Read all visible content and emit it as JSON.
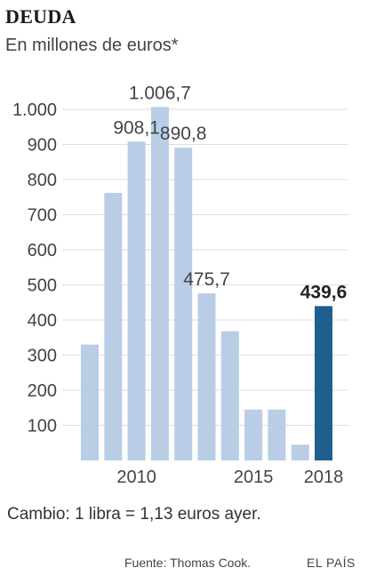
{
  "header": {
    "title": "DEUDA",
    "subtitle": "En millones de euros*"
  },
  "footer": {
    "note": "Cambio: 1 libra = 1,13 euros ayer.",
    "source": "Fuente: Thomas Cook.",
    "brand": "EL PAÍS"
  },
  "colors": {
    "bar": "#b9cde6",
    "highlight": "#1f5f8f",
    "grid": "#dddddd",
    "text": "#444444"
  },
  "chart_data": {
    "type": "bar",
    "x": [
      2008,
      2009,
      2010,
      2011,
      2012,
      2013,
      2014,
      2015,
      2016,
      2017,
      2018
    ],
    "values": [
      330,
      762,
      908.1,
      1006.7,
      890.8,
      475.7,
      368,
      145,
      145,
      45,
      439.6
    ],
    "data_labels": [
      {
        "year": 2010,
        "text": "908,1"
      },
      {
        "year": 2011,
        "text": "1.006,7"
      },
      {
        "year": 2012,
        "text": "890,8"
      },
      {
        "year": 2013,
        "text": "475,7"
      },
      {
        "year": 2018,
        "text": "439,6",
        "highlight": true
      }
    ],
    "highlight_x": 2018,
    "y_ticks": [
      {
        "value": 100,
        "label": "100"
      },
      {
        "value": 200,
        "label": "200"
      },
      {
        "value": 300,
        "label": "300"
      },
      {
        "value": 400,
        "label": "400"
      },
      {
        "value": 500,
        "label": "500"
      },
      {
        "value": 600,
        "label": "600"
      },
      {
        "value": 700,
        "label": "700"
      },
      {
        "value": 800,
        "label": "800"
      },
      {
        "value": 900,
        "label": "900"
      },
      {
        "value": 1000,
        "label": "1.000"
      }
    ],
    "x_ticks": [
      {
        "value": 2010,
        "label": "2010"
      },
      {
        "value": 2015,
        "label": "2015"
      },
      {
        "value": 2018,
        "label": "2018"
      }
    ],
    "ylim": [
      0,
      1050
    ],
    "grid": true,
    "legend": "none"
  }
}
